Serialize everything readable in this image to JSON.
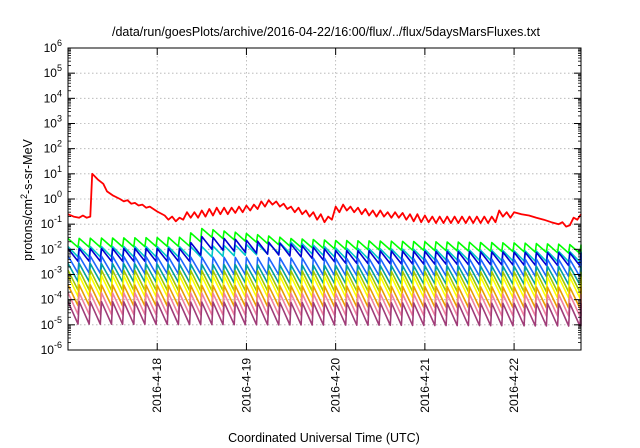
{
  "chart_data": {
    "type": "line",
    "title": "/data/run/goesPlots/archive/2016-04-22/16:00/flux/../flux/5daysMarsFluxes.txt",
    "xlabel": "Coordinated Universal Time (UTC)",
    "ylabel": "protons/cm2-s-sr-MeV",
    "ylabel_main": "protons/cm",
    "ylabel_sup": "2",
    "ylabel_rest": "-s-sr-MeV",
    "y_scale": "log",
    "y_exp_range": [
      -6,
      6
    ],
    "y_tick_exponents": [
      -6,
      -5,
      -4,
      -3,
      -2,
      -1,
      0,
      1,
      2,
      3,
      4,
      5,
      6
    ],
    "x_range": [
      "2016-04-17T00:00",
      "2016-04-22T18:00"
    ],
    "x_ticks": [
      {
        "label": "2016-4-18",
        "t": "2016-04-18T00:00"
      },
      {
        "label": "2016-4-19",
        "t": "2016-04-19T00:00"
      },
      {
        "label": "2016-4-20",
        "t": "2016-04-20T00:00"
      },
      {
        "label": "2016-4-21",
        "t": "2016-04-21T00:00"
      },
      {
        "label": "2016-4-22",
        "t": "2016-04-22T00:00"
      }
    ],
    "grid": true,
    "series": [
      {
        "color": "#ff0000",
        "style": "smooth",
        "points": [
          [
            "2016-04-17T00:00",
            0.25
          ],
          [
            "2016-04-17T01:30",
            0.2
          ],
          [
            "2016-04-17T03:00",
            0.18
          ],
          [
            "2016-04-17T04:00",
            0.22
          ],
          [
            "2016-04-17T05:00",
            0.18
          ],
          [
            "2016-04-17T06:00",
            0.2
          ],
          [
            "2016-04-17T06:30",
            10
          ],
          [
            "2016-04-17T08:00",
            6
          ],
          [
            "2016-04-17T09:30",
            4
          ],
          [
            "2016-04-17T10:30",
            2
          ],
          [
            "2016-04-17T12:00",
            1.4
          ],
          [
            "2016-04-17T14:00",
            1.0
          ],
          [
            "2016-04-17T15:00",
            0.8
          ],
          [
            "2016-04-17T16:00",
            0.9
          ],
          [
            "2016-04-17T17:00",
            0.65
          ],
          [
            "2016-04-17T18:00",
            0.7
          ],
          [
            "2016-04-17T19:00",
            0.55
          ],
          [
            "2016-04-17T20:00",
            0.6
          ],
          [
            "2016-04-17T21:00",
            0.45
          ],
          [
            "2016-04-17T22:00",
            0.5
          ],
          [
            "2016-04-18T00:00",
            0.32
          ],
          [
            "2016-04-18T02:00",
            0.22
          ],
          [
            "2016-04-18T03:00",
            0.15
          ],
          [
            "2016-04-18T04:00",
            0.2
          ],
          [
            "2016-04-18T05:00",
            0.13
          ],
          [
            "2016-04-18T06:00",
            0.18
          ],
          [
            "2016-04-18T07:00",
            0.15
          ],
          [
            "2016-04-18T08:00",
            0.3
          ],
          [
            "2016-04-18T09:00",
            0.18
          ],
          [
            "2016-04-18T10:00",
            0.3
          ],
          [
            "2016-04-18T11:00",
            0.18
          ],
          [
            "2016-04-18T12:00",
            0.35
          ],
          [
            "2016-04-18T13:00",
            0.2
          ],
          [
            "2016-04-18T14:00",
            0.4
          ],
          [
            "2016-04-18T15:00",
            0.22
          ],
          [
            "2016-04-18T16:00",
            0.45
          ],
          [
            "2016-04-18T17:00",
            0.25
          ],
          [
            "2016-04-18T18:00",
            0.45
          ],
          [
            "2016-04-18T19:00",
            0.25
          ],
          [
            "2016-04-18T20:00",
            0.45
          ],
          [
            "2016-04-18T21:00",
            0.28
          ],
          [
            "2016-04-18T22:00",
            0.5
          ],
          [
            "2016-04-18T23:00",
            0.3
          ],
          [
            "2016-04-19T00:00",
            0.55
          ],
          [
            "2016-04-19T01:00",
            0.35
          ],
          [
            "2016-04-19T02:00",
            0.6
          ],
          [
            "2016-04-19T03:00",
            0.4
          ],
          [
            "2016-04-19T04:00",
            0.8
          ],
          [
            "2016-04-19T05:00",
            0.5
          ],
          [
            "2016-04-19T06:00",
            0.9
          ],
          [
            "2016-04-19T07:00",
            0.6
          ],
          [
            "2016-04-19T08:00",
            0.8
          ],
          [
            "2016-04-19T09:00",
            0.5
          ],
          [
            "2016-04-19T10:00",
            0.65
          ],
          [
            "2016-04-19T11:00",
            0.4
          ],
          [
            "2016-04-19T12:00",
            0.5
          ],
          [
            "2016-04-19T13:00",
            0.3
          ],
          [
            "2016-04-19T14:00",
            0.45
          ],
          [
            "2016-04-19T15:00",
            0.25
          ],
          [
            "2016-04-19T16:00",
            0.35
          ],
          [
            "2016-04-19T17:00",
            0.2
          ],
          [
            "2016-04-19T18:00",
            0.3
          ],
          [
            "2016-04-19T19:00",
            0.15
          ],
          [
            "2016-04-19T20:00",
            0.25
          ],
          [
            "2016-04-19T21:00",
            0.12
          ],
          [
            "2016-04-19T22:00",
            0.2
          ],
          [
            "2016-04-19T23:00",
            0.15
          ],
          [
            "2016-04-20T00:00",
            0.5
          ],
          [
            "2016-04-20T01:00",
            0.3
          ],
          [
            "2016-04-20T02:00",
            0.6
          ],
          [
            "2016-04-20T03:00",
            0.35
          ],
          [
            "2016-04-20T04:00",
            0.5
          ],
          [
            "2016-04-20T05:00",
            0.3
          ],
          [
            "2016-04-20T06:00",
            0.45
          ],
          [
            "2016-04-20T07:00",
            0.25
          ],
          [
            "2016-04-20T08:00",
            0.4
          ],
          [
            "2016-04-20T09:00",
            0.22
          ],
          [
            "2016-04-20T10:00",
            0.35
          ],
          [
            "2016-04-20T11:00",
            0.2
          ],
          [
            "2016-04-20T12:00",
            0.35
          ],
          [
            "2016-04-20T13:00",
            0.2
          ],
          [
            "2016-04-20T14:00",
            0.3
          ],
          [
            "2016-04-20T15:00",
            0.18
          ],
          [
            "2016-04-20T16:00",
            0.3
          ],
          [
            "2016-04-20T17:00",
            0.18
          ],
          [
            "2016-04-20T18:00",
            0.28
          ],
          [
            "2016-04-20T19:00",
            0.15
          ],
          [
            "2016-04-20T20:00",
            0.25
          ],
          [
            "2016-04-20T21:00",
            0.13
          ],
          [
            "2016-04-20T22:00",
            0.25
          ],
          [
            "2016-04-20T23:00",
            0.12
          ],
          [
            "2016-04-21T00:00",
            0.22
          ],
          [
            "2016-04-21T01:00",
            0.12
          ],
          [
            "2016-04-21T02:00",
            0.2
          ],
          [
            "2016-04-21T03:00",
            0.11
          ],
          [
            "2016-04-21T04:00",
            0.2
          ],
          [
            "2016-04-21T05:00",
            0.11
          ],
          [
            "2016-04-21T06:00",
            0.2
          ],
          [
            "2016-04-21T07:00",
            0.11
          ],
          [
            "2016-04-21T08:00",
            0.2
          ],
          [
            "2016-04-21T09:00",
            0.11
          ],
          [
            "2016-04-21T10:00",
            0.2
          ],
          [
            "2016-04-21T11:00",
            0.11
          ],
          [
            "2016-04-21T12:00",
            0.2
          ],
          [
            "2016-04-21T13:00",
            0.11
          ],
          [
            "2016-04-21T14:00",
            0.2
          ],
          [
            "2016-04-21T15:00",
            0.11
          ],
          [
            "2016-04-21T16:00",
            0.2
          ],
          [
            "2016-04-21T17:00",
            0.11
          ],
          [
            "2016-04-21T18:00",
            0.2
          ],
          [
            "2016-04-21T19:00",
            0.12
          ],
          [
            "2016-04-21T20:00",
            0.35
          ],
          [
            "2016-04-21T21:00",
            0.2
          ],
          [
            "2016-04-21T22:00",
            0.3
          ],
          [
            "2016-04-21T23:00",
            0.18
          ],
          [
            "2016-04-22T00:00",
            0.3
          ],
          [
            "2016-04-22T02:00",
            0.25
          ],
          [
            "2016-04-22T04:00",
            0.22
          ],
          [
            "2016-04-22T06:00",
            0.18
          ],
          [
            "2016-04-22T08:00",
            0.15
          ],
          [
            "2016-04-22T10:00",
            0.12
          ],
          [
            "2016-04-22T12:00",
            0.1
          ],
          [
            "2016-04-22T13:00",
            0.12
          ],
          [
            "2016-04-22T14:00",
            0.08
          ],
          [
            "2016-04-22T15:00",
            0.09
          ],
          [
            "2016-04-22T16:00",
            0.18
          ],
          [
            "2016-04-22T17:00",
            0.15
          ],
          [
            "2016-04-22T18:00",
            0.25
          ]
        ]
      },
      {
        "color": "#00ff00",
        "style": "sawtooth",
        "base": [
          [
            0,
            0.018
          ],
          [
            1.25,
            0.02
          ],
          [
            1.5,
            0.045
          ],
          [
            2.5,
            0.018
          ],
          [
            3,
            0.015
          ],
          [
            5,
            0.012
          ],
          [
            5.75,
            0.01
          ]
        ],
        "amp": 1.5
      },
      {
        "color": "#00c8c8",
        "style": "sawtooth",
        "base": [
          [
            0,
            0.008
          ],
          [
            1.5,
            0.008
          ],
          [
            2.5,
            0.012
          ],
          [
            3,
            0.007
          ],
          [
            5.75,
            0.005
          ]
        ],
        "amp": 1.6
      },
      {
        "color": "#0000d0",
        "style": "sawtooth",
        "base": [
          [
            0,
            0.006
          ],
          [
            1.25,
            0.006
          ],
          [
            1.5,
            0.018
          ],
          [
            2.5,
            0.009
          ],
          [
            3,
            0.005
          ],
          [
            5.75,
            0.004
          ]
        ],
        "amp": 1.8
      },
      {
        "color": "#1e64ff",
        "style": "sawtooth",
        "base": [
          [
            0,
            0.0025
          ],
          [
            3,
            0.002
          ],
          [
            5.75,
            0.0018
          ]
        ],
        "amp": 2.2
      },
      {
        "color": "#00a0a0",
        "style": "sawtooth",
        "base": [
          [
            0,
            0.0012
          ],
          [
            3,
            0.001
          ],
          [
            5.75,
            0.0009
          ]
        ],
        "amp": 2.3
      },
      {
        "color": "#a0c800",
        "style": "sawtooth",
        "base": [
          [
            0,
            0.0006
          ],
          [
            5.75,
            0.0005
          ]
        ],
        "amp": 2.5
      },
      {
        "color": "#ffff00",
        "style": "sawtooth",
        "base": [
          [
            0,
            0.00035
          ],
          [
            5.75,
            0.0003
          ]
        ],
        "amp": 2.6
      },
      {
        "color": "#e8a000",
        "style": "sawtooth",
        "base": [
          [
            0,
            0.00015
          ],
          [
            5.75,
            0.00012
          ]
        ],
        "amp": 2.6
      },
      {
        "color": "#f080a0",
        "style": "sawtooth",
        "base": [
          [
            0,
            7e-05
          ],
          [
            5.75,
            6e-05
          ]
        ],
        "amp": 2.7
      },
      {
        "color": "#a03c78",
        "style": "sawtooth",
        "base": [
          [
            0,
            3e-05
          ],
          [
            5.75,
            2.5e-05
          ]
        ],
        "amp": 2.8
      }
    ]
  }
}
